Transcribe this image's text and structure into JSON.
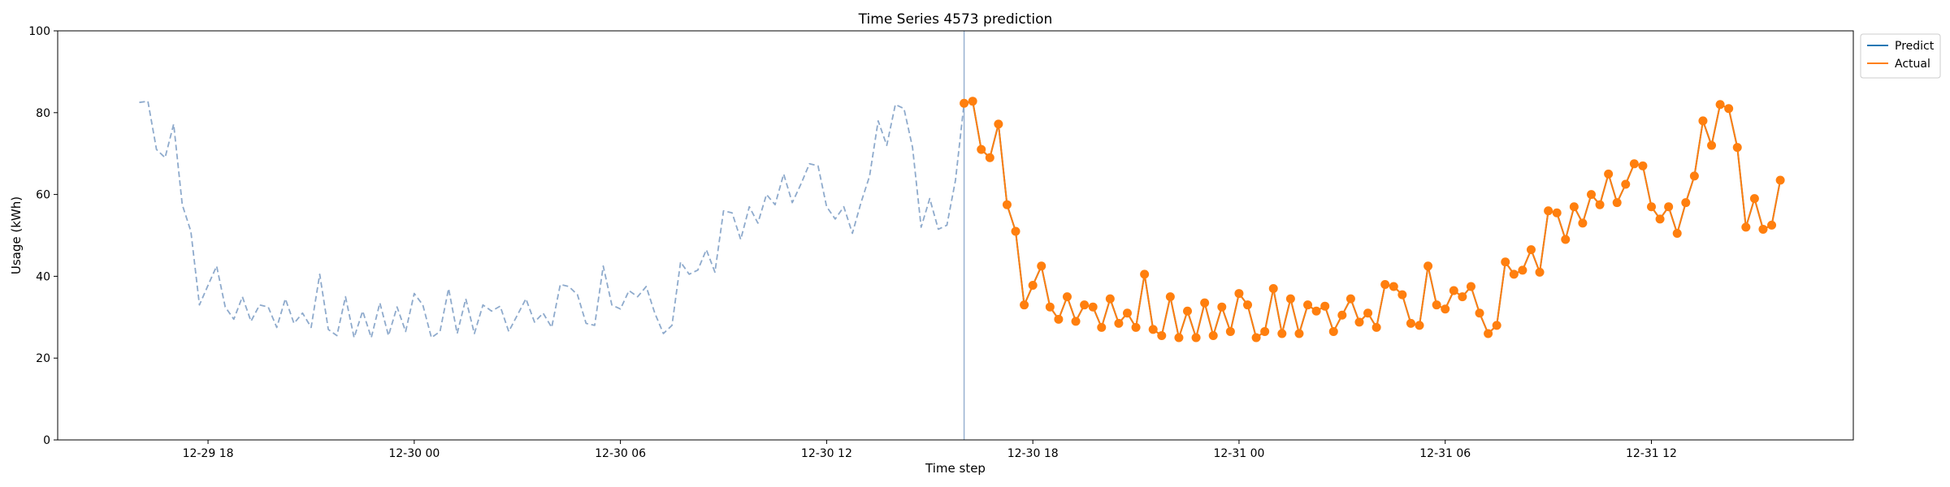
{
  "chart_data": {
    "type": "line",
    "title": "Time Series 4573 prediction",
    "xlabel": "Time step",
    "ylabel": "Usage (kWh)",
    "ylim": [
      0,
      100
    ],
    "yticks": [
      0,
      20,
      40,
      60,
      80,
      100
    ],
    "xlim": [
      -9.5,
      199.5
    ],
    "xticks": [
      {
        "pos": 8,
        "label": "12-29 18"
      },
      {
        "pos": 32,
        "label": "12-30 00"
      },
      {
        "pos": 56,
        "label": "12-30 06"
      },
      {
        "pos": 80,
        "label": "12-30 12"
      },
      {
        "pos": 104,
        "label": "12-30 18"
      },
      {
        "pos": 128,
        "label": "12-31 00"
      },
      {
        "pos": 152,
        "label": "12-31 06"
      },
      {
        "pos": 176,
        "label": "12-31 12"
      }
    ],
    "grid": false,
    "legend_position": "outside-top-right",
    "forecast_start": 96,
    "series": [
      {
        "name": "History",
        "legend": false,
        "style": "dashed",
        "color": "#8eaacc",
        "x_start": 0,
        "values": [
          82.5,
          82.8,
          71.0,
          69.0,
          77.2,
          57.5,
          51.0,
          33.0,
          37.8,
          42.5,
          32.5,
          29.5,
          35.0,
          29.0,
          33.0,
          32.5,
          27.5,
          34.5,
          28.5,
          31.0,
          27.5,
          40.5,
          27.0,
          25.5,
          35.0,
          25.0,
          31.5,
          25.0,
          33.5,
          25.5,
          32.5,
          26.5,
          35.8,
          33.0,
          25.0,
          26.5,
          37.0,
          26.0,
          34.5,
          26.0,
          33.0,
          31.5,
          32.7,
          26.5,
          30.5,
          34.5,
          28.8,
          31.0,
          27.5,
          38.0,
          37.5,
          35.5,
          28.5,
          28.0,
          42.5,
          33.0,
          32.0,
          36.5,
          35.0,
          37.5,
          31.0,
          26.0,
          28.0,
          43.5,
          40.5,
          41.5,
          46.5,
          41.0,
          56.0,
          55.5,
          49.0,
          57.0,
          53.0,
          60.0,
          57.5,
          65.0,
          58.0,
          62.5,
          67.5,
          67.0,
          57.0,
          54.0,
          57.0,
          50.5,
          58.0,
          64.5,
          78.0,
          72.0,
          82.0,
          81.0,
          71.5,
          52.0,
          59.0,
          51.5,
          52.5,
          63.5,
          82.3
        ]
      },
      {
        "name": "Predict",
        "legend": true,
        "style": "solid",
        "color": "#1f77b4",
        "x_start": 96,
        "values": [
          82.3,
          82.8,
          71.0,
          69.0,
          77.2,
          57.5,
          51.0,
          33.0,
          37.8,
          42.5,
          32.5,
          29.5,
          35.0,
          29.0,
          33.0,
          32.5,
          27.5,
          34.5,
          28.5,
          31.0,
          27.5,
          40.5,
          27.0,
          25.5,
          35.0,
          25.0,
          31.5,
          25.0,
          33.5,
          25.5,
          32.5,
          26.5,
          35.8,
          33.0,
          25.0,
          26.5,
          37.0,
          26.0,
          34.5,
          26.0,
          33.0,
          31.5,
          32.7,
          26.5,
          30.5,
          34.5,
          28.8,
          31.0,
          27.5,
          38.0,
          37.5,
          35.5,
          28.5,
          28.0,
          42.5,
          33.0,
          32.0,
          36.5,
          35.0,
          37.5,
          31.0,
          26.0,
          28.0,
          43.5,
          40.5,
          41.5,
          46.5,
          41.0,
          56.0,
          55.5,
          49.0,
          57.0,
          53.0,
          60.0,
          57.5,
          65.0,
          58.0,
          62.5,
          67.5,
          67.0,
          57.0,
          54.0,
          57.0,
          50.5,
          58.0,
          64.5,
          78.0,
          72.0,
          82.0,
          81.0,
          71.5,
          52.0,
          59.0,
          51.5,
          52.5,
          63.5
        ]
      },
      {
        "name": "Actual",
        "legend": true,
        "style": "solid-markers",
        "color": "#ff7f0e",
        "x_start": 96,
        "values": [
          82.3,
          82.8,
          71.0,
          69.0,
          77.2,
          57.5,
          51.0,
          33.0,
          37.8,
          42.5,
          32.5,
          29.5,
          35.0,
          29.0,
          33.0,
          32.5,
          27.5,
          34.5,
          28.5,
          31.0,
          27.5,
          40.5,
          27.0,
          25.5,
          35.0,
          25.0,
          31.5,
          25.0,
          33.5,
          25.5,
          32.5,
          26.5,
          35.8,
          33.0,
          25.0,
          26.5,
          37.0,
          26.0,
          34.5,
          26.0,
          33.0,
          31.5,
          32.7,
          26.5,
          30.5,
          34.5,
          28.8,
          31.0,
          27.5,
          38.0,
          37.5,
          35.5,
          28.5,
          28.0,
          42.5,
          33.0,
          32.0,
          36.5,
          35.0,
          37.5,
          31.0,
          26.0,
          28.0,
          43.5,
          40.5,
          41.5,
          46.5,
          41.0,
          56.0,
          55.5,
          49.0,
          57.0,
          53.0,
          60.0,
          57.5,
          65.0,
          58.0,
          62.5,
          67.5,
          67.0,
          57.0,
          54.0,
          57.0,
          50.5,
          58.0,
          64.5,
          78.0,
          72.0,
          82.0,
          81.0,
          71.5,
          52.0,
          59.0,
          51.5,
          52.5,
          63.5
        ]
      }
    ],
    "colors": {
      "forecast_line": "#8eaacc",
      "axes": "#000000"
    }
  }
}
